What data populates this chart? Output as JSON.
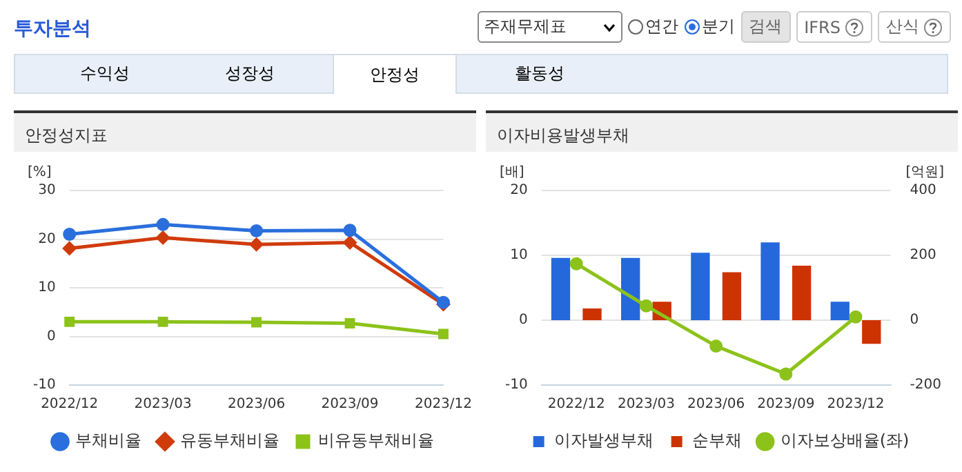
{
  "chart_data": [
    {
      "type": "other",
      "title": "투자분석",
      "annotations": [
        "주재무제표",
        "연간",
        "분기",
        "검색",
        "IFRS",
        "산식",
        "수익성",
        "성장성",
        "안정성",
        "활동성"
      ]
    },
    {
      "type": "line",
      "title": "안정성지표",
      "ylabel": "[%]",
      "categories": [
        "2022/12",
        "2023/03",
        "2023/06",
        "2023/09",
        "2023/12"
      ],
      "series": [
        {
          "name": "부채비율",
          "color": "#2a6fdc",
          "marker": "circle",
          "values": [
            21.0,
            23.0,
            21.7,
            21.8,
            7.0
          ]
        },
        {
          "name": "유동부채비율",
          "color": "#d03b0c",
          "marker": "diamond",
          "values": [
            18.1,
            20.3,
            18.9,
            19.3,
            6.6
          ]
        },
        {
          "name": "비유동부채비율",
          "color": "#8cc21a",
          "marker": "square",
          "values": [
            3.0,
            3.0,
            2.9,
            2.7,
            0.5
          ]
        }
      ],
      "ylim": [
        -10,
        30
      ],
      "yticks": [
        -10,
        0,
        10,
        20,
        30
      ],
      "grid": "y",
      "legend": "bottom"
    },
    {
      "type": "bar",
      "title": "이자비용발생부채",
      "ylabel": "[배]",
      "y2label": "[억원]",
      "categories": [
        "2022/12",
        "2023/03",
        "2023/06",
        "2023/09",
        "2023/12"
      ],
      "series": [
        {
          "name": "이자발생부채",
          "color": "#2468dc",
          "axis": "y2",
          "values": [
            192,
            192,
            208,
            240,
            57
          ]
        },
        {
          "name": "순부채",
          "color": "#cc3300",
          "axis": "y2",
          "values": [
            36,
            57,
            148,
            168,
            -73
          ]
        },
        {
          "name": "이자보상배율(좌)",
          "type": "line",
          "color": "#8cc21a",
          "marker": "circle",
          "values": [
            8.7,
            2.2,
            -4.0,
            -8.3,
            0.5
          ]
        }
      ],
      "ylim": [
        -10,
        20
      ],
      "yticks": [
        -10,
        0,
        10,
        20
      ],
      "y2lim": [
        -200,
        400
      ],
      "y2ticks": [
        -200,
        0,
        200,
        400
      ],
      "grid": "y",
      "legend": "bottom"
    }
  ]
}
